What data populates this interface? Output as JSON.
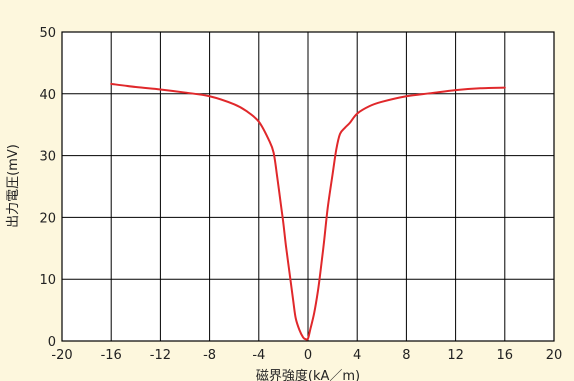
{
  "chart_data": {
    "type": "line",
    "title": "",
    "xlabel": "磁界強度(kA／m)",
    "ylabel": "出力電圧(mV)",
    "xlim": [
      -20,
      20
    ],
    "ylim": [
      0,
      50
    ],
    "x_ticks": [
      -20,
      -16,
      -12,
      -8,
      -4,
      0,
      4,
      8,
      12,
      16,
      20
    ],
    "y_ticks": [
      0,
      10,
      20,
      30,
      40,
      50
    ],
    "grid": true,
    "line_color": "#e0282b",
    "background_color": "#fdf7dd",
    "series": [
      {
        "x": [
          -16,
          -14,
          -12,
          -10,
          -8,
          -6,
          -5,
          -4,
          -3.2,
          -2.8,
          -2.5,
          -2.2,
          -2,
          -1.8,
          -1.5,
          -1.2,
          -1,
          -0.7,
          -0.4,
          -0.2,
          0,
          0.2,
          0.5,
          0.8,
          1,
          1.3,
          1.6,
          2,
          2.3,
          2.6,
          3,
          3.4,
          4,
          5,
          6,
          8,
          10,
          12,
          14,
          16
        ],
        "y": [
          41.6,
          41.1,
          40.7,
          40.2,
          39.6,
          38.3,
          37.2,
          35.5,
          32.6,
          30.5,
          26.5,
          22.0,
          19.0,
          15.5,
          11.0,
          6.5,
          3.7,
          1.8,
          0.6,
          0.3,
          0.4,
          2.0,
          4.5,
          8.0,
          11.0,
          16.0,
          21.5,
          27.0,
          31.0,
          33.5,
          34.5,
          35.3,
          36.8,
          38.0,
          38.7,
          39.6,
          40.1,
          40.6,
          40.9,
          41.0
        ]
      }
    ]
  }
}
